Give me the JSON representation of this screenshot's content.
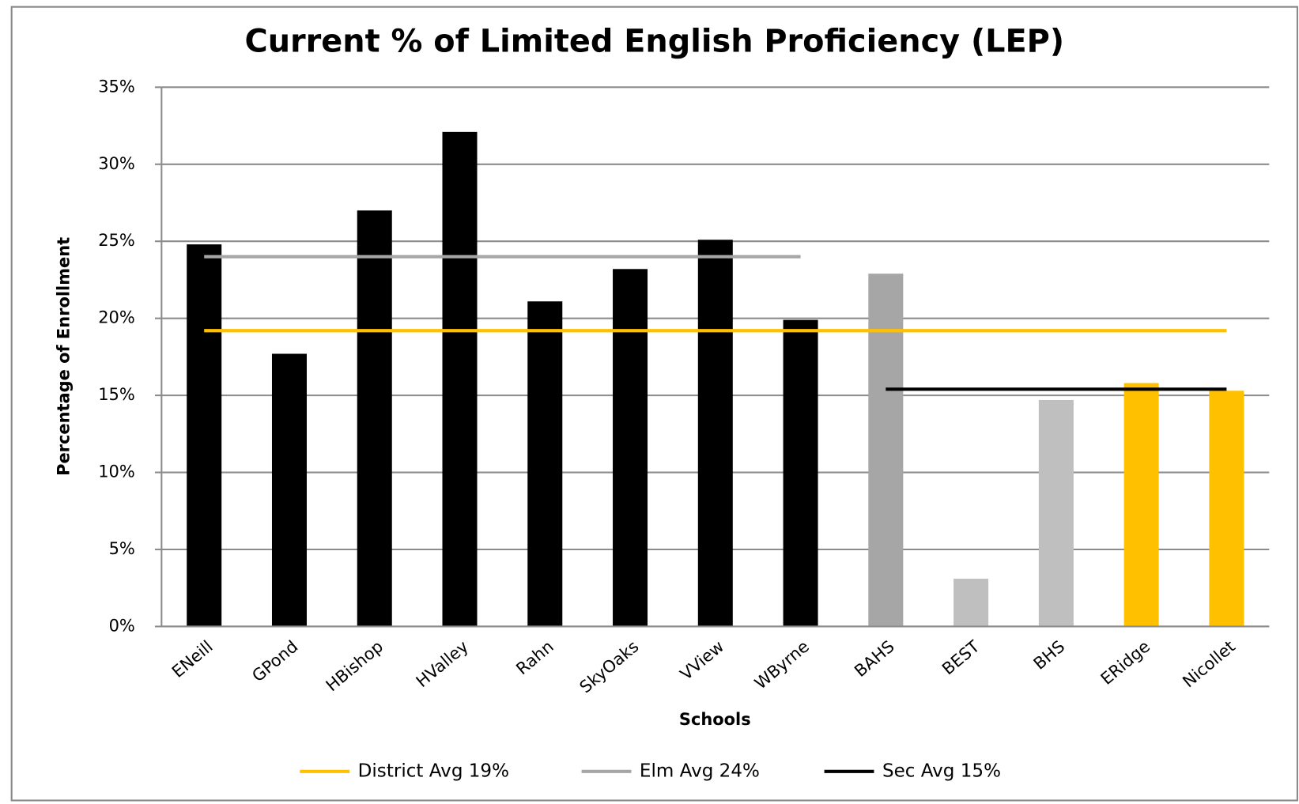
{
  "chart_data": {
    "type": "bar",
    "title": "Current % of Limited English Proficiency (LEP)",
    "x_label": "Schools",
    "y_label": "Percentage of Enrollment",
    "categories": [
      "ENeill",
      "GPond",
      "HBishop",
      "HValley",
      "Rahn",
      "SkyOaks",
      "VView",
      "WByrne",
      "BAHS",
      "BEST",
      "BHS",
      "ERidge",
      "Nicollet"
    ],
    "values": [
      24.8,
      17.7,
      27.0,
      32.1,
      21.1,
      23.2,
      25.1,
      19.9,
      22.9,
      3.1,
      14.7,
      15.8,
      15.3
    ],
    "colors": [
      "#000000",
      "#000000",
      "#000000",
      "#000000",
      "#000000",
      "#000000",
      "#000000",
      "#000000",
      "#a6a6a6",
      "#bfbfbf",
      "#bfbfbf",
      "#ffc000",
      "#ffc000"
    ],
    "series": [
      {
        "name": "District Avg 19%",
        "color": "#ffc000",
        "type": "line",
        "values": [
          19.2,
          19.2,
          19.2,
          19.2,
          19.2,
          19.2,
          19.2,
          19.2,
          19.2,
          19.2,
          19.2,
          19.2,
          19.2
        ]
      },
      {
        "name": "Elm Avg 24%",
        "color": "#a6a6a6",
        "type": "line",
        "values": [
          24.0,
          24.0,
          24.0,
          24.0,
          24.0,
          24.0,
          24.0,
          24.0,
          null,
          null,
          null,
          null,
          null
        ]
      },
      {
        "name": "Sec Avg 15%",
        "color": "#000000",
        "type": "line",
        "values": [
          null,
          null,
          null,
          null,
          null,
          null,
          null,
          null,
          15.4,
          15.4,
          15.4,
          15.4,
          15.4
        ]
      }
    ],
    "ylim": [
      0,
      35
    ],
    "yticks": [
      {
        "value": 0,
        "label": "0%"
      },
      {
        "value": 5,
        "label": "5%"
      },
      {
        "value": 10,
        "label": "10%"
      },
      {
        "value": 15,
        "label": "15%"
      },
      {
        "value": 20,
        "label": "20%"
      },
      {
        "value": 25,
        "label": "25%"
      },
      {
        "value": 30,
        "label": "30%"
      },
      {
        "value": 35,
        "label": "35%"
      }
    ],
    "grid": true,
    "legend": "bottom"
  }
}
